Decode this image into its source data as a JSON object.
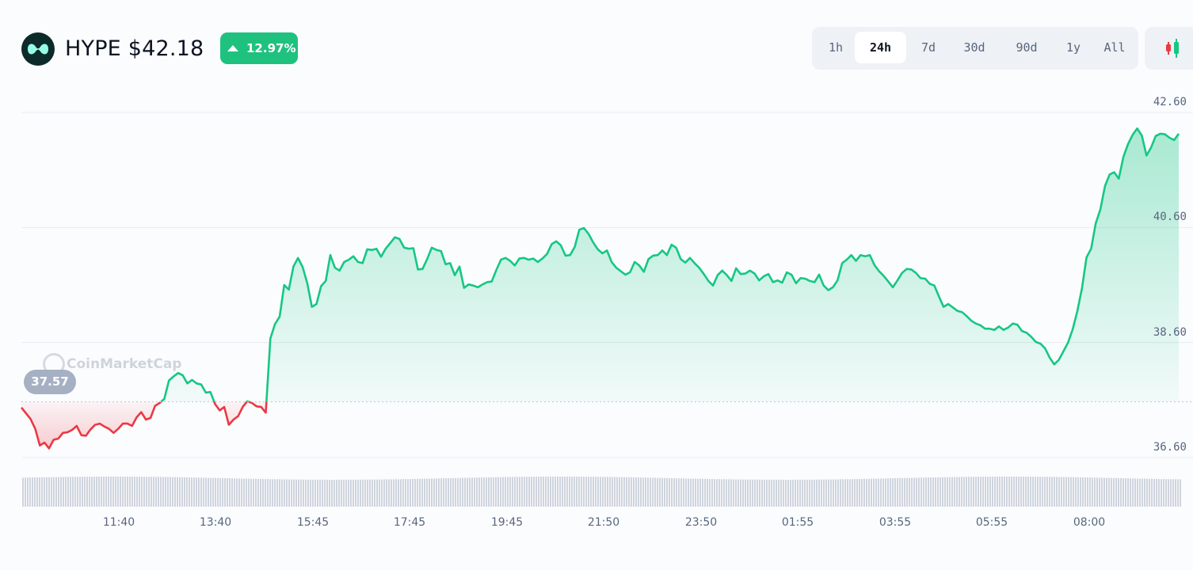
{
  "asset": {
    "symbol": "HYPE",
    "price": "$42.18",
    "title": "HYPE $42.18",
    "change": "12.97%",
    "change_direction": "up",
    "icon": "hyperliquid-logo-icon"
  },
  "range_tabs": [
    {
      "label": "1h",
      "active": false
    },
    {
      "label": "24h",
      "active": true
    },
    {
      "label": "7d",
      "active": false
    },
    {
      "label": "30d",
      "active": false
    },
    {
      "label": "90d",
      "active": false
    },
    {
      "label": "1y",
      "active": false
    },
    {
      "label": "All",
      "active": false
    }
  ],
  "chart_type_toggle": {
    "icon": "candlestick-icon"
  },
  "watermark": "CoinMarketCap",
  "colors": {
    "up": "#16c784",
    "down": "#ea3943",
    "badge": "#1fc17f",
    "volume": "#cfd4dd",
    "baseline_pill": "#a6b0c3"
  },
  "chart_data": {
    "type": "area",
    "title": "",
    "xlabel": "",
    "ylabel": "",
    "baseline": 37.57,
    "baseline_label": "37.57",
    "ylim": [
      36.6,
      42.6
    ],
    "yticks": [
      36.6,
      38.6,
      40.6,
      42.6
    ],
    "ytick_labels": [
      "36.60",
      "38.60",
      "40.60",
      "42.60"
    ],
    "xticks": [
      "11:40",
      "13:40",
      "15:45",
      "17:45",
      "19:45",
      "21:50",
      "23:50",
      "01:55",
      "03:55",
      "05:55",
      "08:00"
    ],
    "grid": true,
    "x_start": "09:20",
    "x_end": "09:10",
    "series": [
      {
        "values": [
          37.47,
          37.37,
          37.27,
          37.1,
          36.81,
          36.86,
          36.76,
          36.91,
          36.93,
          37.03,
          37.04,
          37.08,
          37.15,
          36.99,
          36.98,
          37.09,
          37.17,
          37.19,
          37.14,
          37.1,
          37.03,
          37.1,
          37.19,
          37.19,
          37.15,
          37.3,
          37.39,
          37.26,
          37.29,
          37.5,
          37.55,
          37.62,
          37.94,
          38.01,
          38.07,
          38.03,
          37.89,
          37.95,
          37.89,
          37.87,
          37.73,
          37.74,
          37.53,
          37.42,
          37.48,
          37.17,
          37.26,
          37.32,
          37.48,
          37.58,
          37.55,
          37.49,
          37.48,
          37.38,
          38.67,
          38.92,
          39.05,
          39.6,
          39.52,
          39.92,
          40.07,
          39.91,
          39.63,
          39.22,
          39.27,
          39.58,
          39.67,
          40.12,
          39.9,
          39.85,
          40.0,
          40.04,
          40.1,
          40.0,
          39.98,
          40.22,
          40.21,
          40.23,
          40.09,
          40.23,
          40.33,
          40.43,
          40.4,
          40.25,
          40.23,
          40.24,
          39.87,
          39.88,
          40.05,
          40.25,
          40.21,
          40.19,
          39.96,
          39.98,
          39.77,
          39.92,
          39.55,
          39.61,
          39.59,
          39.56,
          39.61,
          39.65,
          39.66,
          39.86,
          40.04,
          40.07,
          40.02,
          39.94,
          40.06,
          40.07,
          40.04,
          40.06,
          40.0,
          40.06,
          40.14,
          40.31,
          40.36,
          40.29,
          40.11,
          40.12,
          40.26,
          40.56,
          40.59,
          40.49,
          40.34,
          40.22,
          40.15,
          40.2,
          40.0,
          39.9,
          39.84,
          39.78,
          39.82,
          40.0,
          39.94,
          39.83,
          40.05,
          40.11,
          40.12,
          40.2,
          40.12,
          40.3,
          40.25,
          40.05,
          39.99,
          40.07,
          39.98,
          39.9,
          39.79,
          39.67,
          39.59,
          39.77,
          39.85,
          39.77,
          39.67,
          39.89,
          39.79,
          39.8,
          39.85,
          39.8,
          39.68,
          39.75,
          39.79,
          39.65,
          39.68,
          39.64,
          39.82,
          39.78,
          39.63,
          39.72,
          39.71,
          39.67,
          39.65,
          39.78,
          39.59,
          39.51,
          39.56,
          39.68,
          39.98,
          40.04,
          40.12,
          40.02,
          40.12,
          40.1,
          40.12,
          39.95,
          39.84,
          39.76,
          39.66,
          39.56,
          39.68,
          39.81,
          39.88,
          39.87,
          39.81,
          39.72,
          39.71,
          39.62,
          39.59,
          39.4,
          39.22,
          39.27,
          39.21,
          39.15,
          39.13,
          39.06,
          38.98,
          38.93,
          38.9,
          38.84,
          38.84,
          38.82,
          38.88,
          38.82,
          38.86,
          38.93,
          38.91,
          38.8,
          38.77,
          38.7,
          38.61,
          38.58,
          38.5,
          38.34,
          38.22,
          38.3,
          38.45,
          38.6,
          38.83,
          39.14,
          39.54,
          40.08,
          40.23,
          40.67,
          40.91,
          41.32,
          41.52,
          41.56,
          41.45,
          41.83,
          42.05,
          42.21,
          42.32,
          42.2,
          41.85,
          41.99,
          42.19,
          42.23,
          42.22,
          42.16,
          42.12,
          42.23
        ]
      }
    ],
    "volume_relative": "uniform"
  }
}
